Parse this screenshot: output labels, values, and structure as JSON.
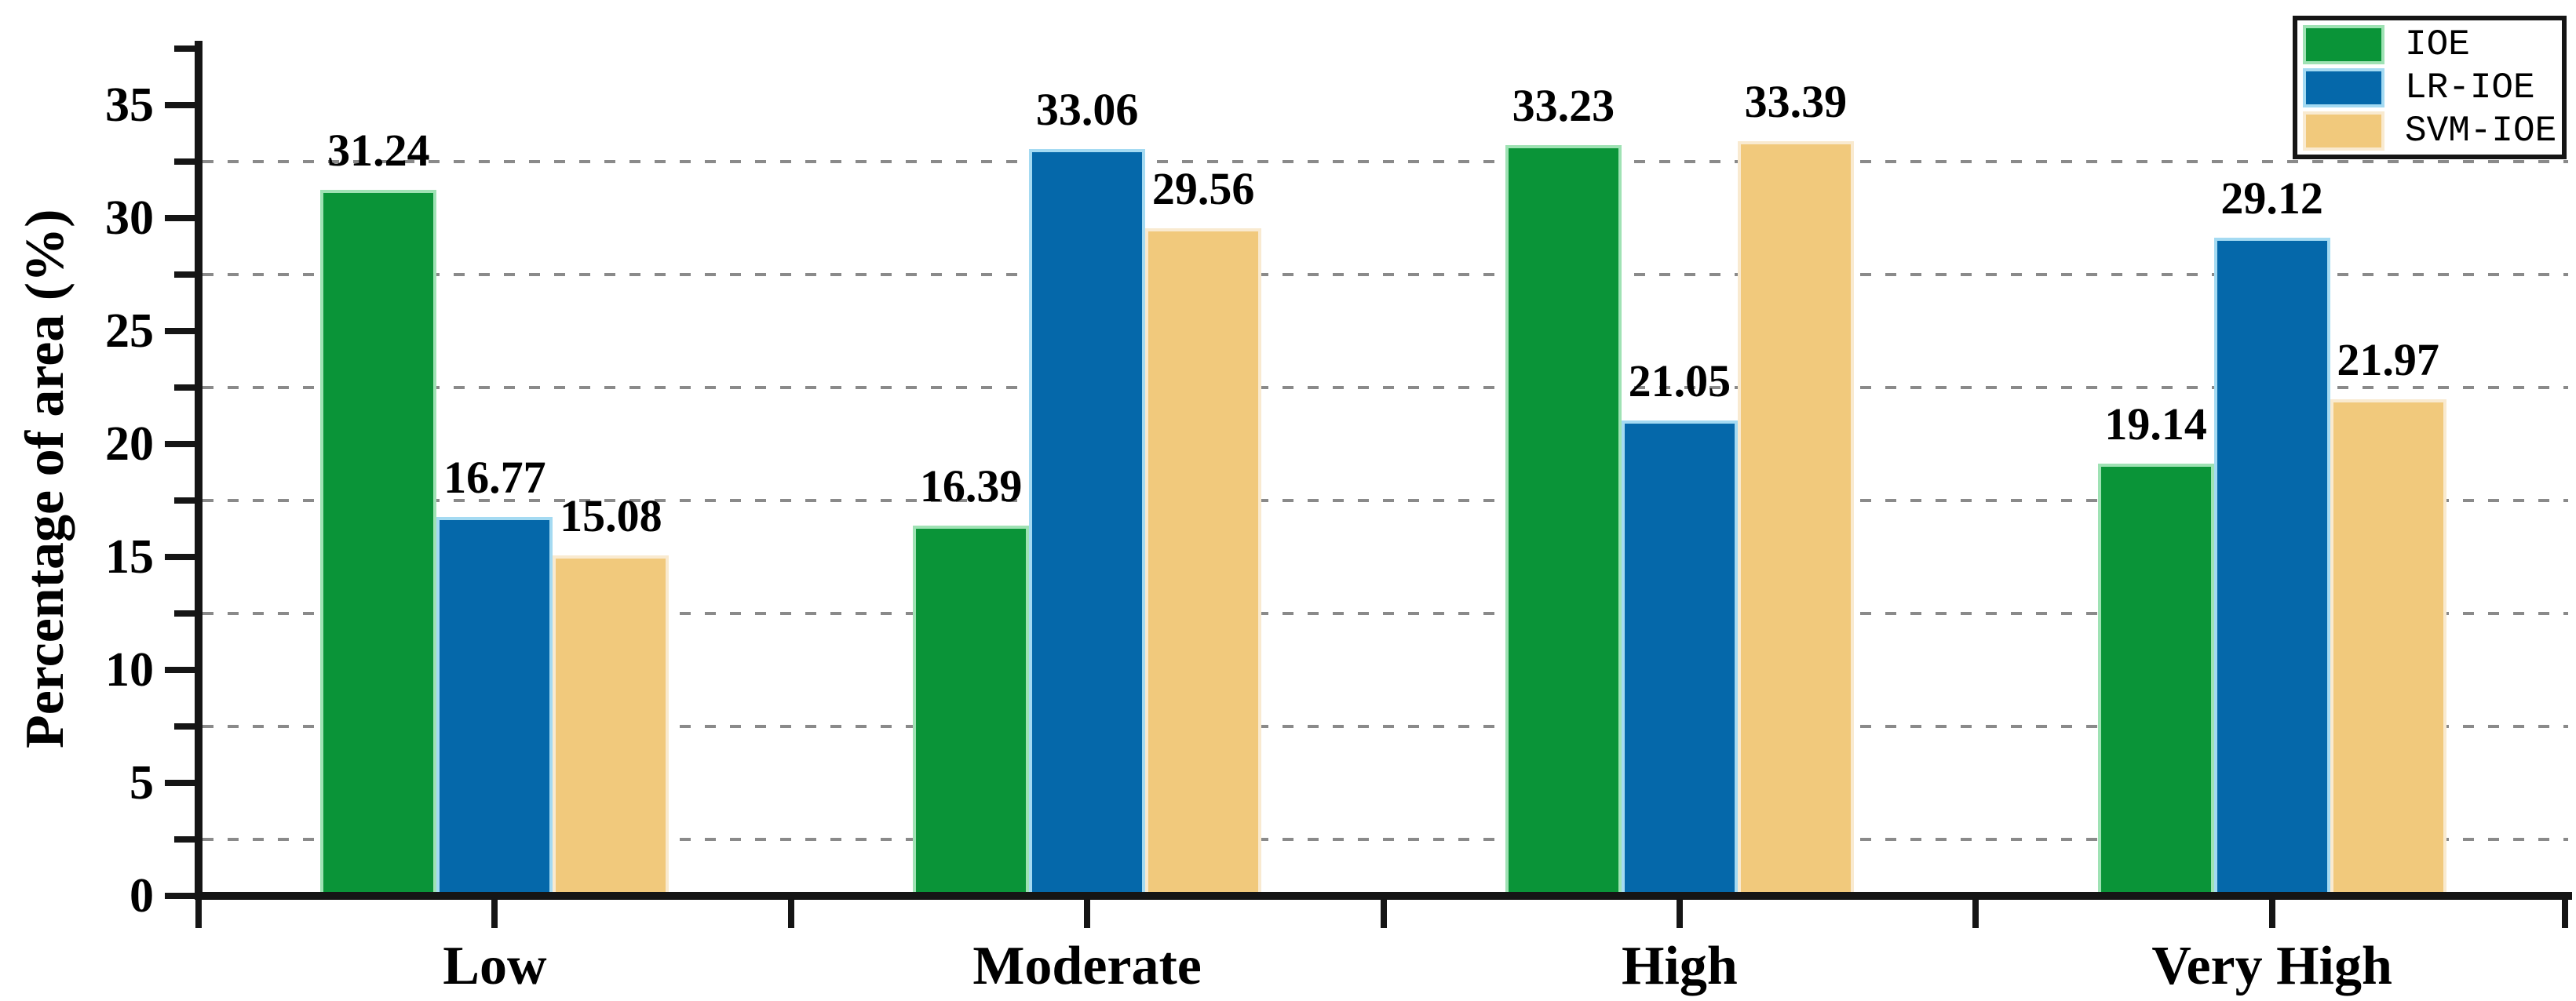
{
  "chart_data": {
    "type": "bar",
    "title": "",
    "categories": [
      "Low",
      "Moderate",
      "High",
      "Very High"
    ],
    "series": [
      {
        "name": "IOE",
        "color": "#0a9438",
        "edge_color": "#9fe2b4",
        "values": [
          31.24,
          16.39,
          33.23,
          19.14
        ]
      },
      {
        "name": "LR-IOE",
        "color": "#0568aa",
        "edge_color": "#a4daf2",
        "values": [
          16.77,
          33.06,
          21.05,
          29.12
        ]
      },
      {
        "name": "SVM-IOE",
        "color": "#f1c97c",
        "edge_color": "#f9ead0",
        "values": [
          15.08,
          29.56,
          33.39,
          21.97
        ]
      }
    ],
    "xlabel": "",
    "ylabel": "Percentage of area (%)",
    "ylim": [
      0,
      37.7
    ],
    "yticks_major": [
      0,
      5,
      10,
      15,
      20,
      25,
      30,
      35
    ],
    "ytick_labels": [
      "0",
      "5",
      "10",
      "15",
      "20",
      "25",
      "30",
      "35"
    ],
    "yticks_minor": [
      2.5,
      7.5,
      12.5,
      17.5,
      22.5,
      27.5,
      32.5,
      37.5
    ],
    "gridlines_at": [
      2.5,
      7.5,
      12.5,
      17.5,
      22.5,
      27.5,
      32.5
    ],
    "grid_style": "dashed",
    "grid_color": "#8a8a8a",
    "axis_color": "#151515",
    "background_color": "#ffffff",
    "value_label_decimals": 2,
    "legend": {
      "position": "top-right",
      "entries": [
        "IOE",
        "LR-IOE",
        "SVM-IOE"
      ]
    }
  }
}
